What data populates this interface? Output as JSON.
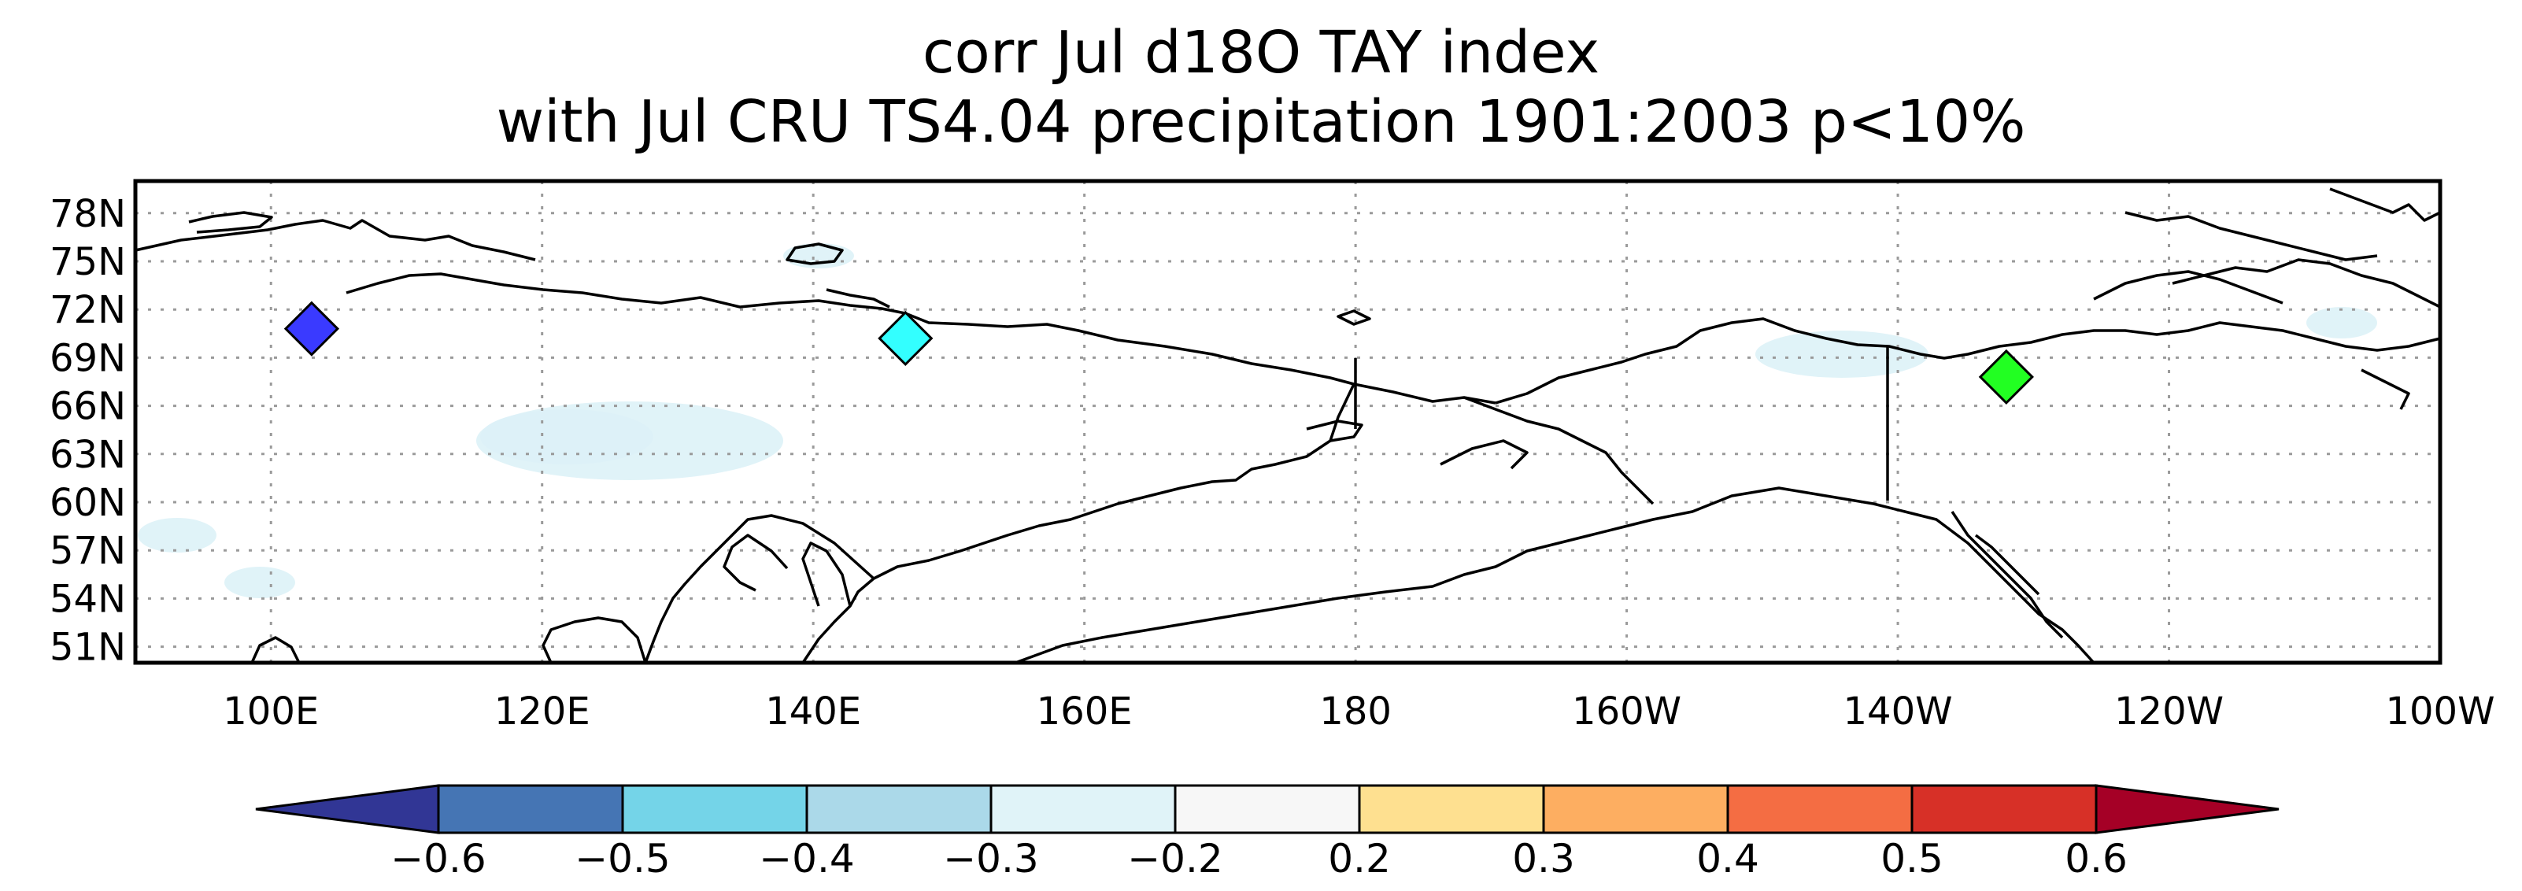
{
  "title_line1": "corr Jul d18O TAY index",
  "title_line2": "with Jul CRU TS4.04 precipitation 1901:2003 p<10%",
  "map": {
    "lon_range": [
      90,
      260
    ],
    "lat_range": [
      50,
      80
    ],
    "lat_ticks": [
      "78N",
      "75N",
      "72N",
      "69N",
      "66N",
      "63N",
      "60N",
      "57N",
      "54N",
      "51N"
    ],
    "lon_ticks": [
      "100E",
      "120E",
      "140E",
      "160E",
      "180",
      "160W",
      "140W",
      "120W",
      "100W"
    ]
  },
  "sites": [
    {
      "name": "site-blue",
      "lon": 103.0,
      "lat": 70.8,
      "color": "#3a3aff"
    },
    {
      "name": "site-cyan",
      "lon": 146.8,
      "lat": 70.2,
      "color": "#33ffff"
    },
    {
      "name": "site-green",
      "lon": 228.0,
      "lat": 67.8,
      "color": "#22ff22"
    }
  ],
  "colorbar": {
    "labels": [
      "-0.6",
      "-0.5",
      "-0.4",
      "-0.3",
      "-0.2",
      "0.2",
      "0.3",
      "0.4",
      "0.5",
      "0.6"
    ],
    "below_color": "#313695",
    "above_color": "#a50026",
    "colors": [
      "#4575b4",
      "#74d4e8",
      "#abd9e9",
      "#e0f3f8",
      "#f7f7f7",
      "#fee090",
      "#fdae61",
      "#f46d43",
      "#d73027"
    ]
  }
}
